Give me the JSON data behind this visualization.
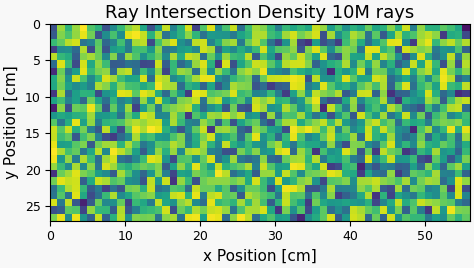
{
  "title": "Ray Intersection Density 10M rays",
  "xlabel": "x Position [cm]",
  "ylabel": "y Position [cm]",
  "xlim": [
    0,
    56
  ],
  "ylim": [
    0,
    27
  ],
  "x_ticks": [
    0,
    10,
    20,
    30,
    40,
    50
  ],
  "y_ticks": [
    0,
    5,
    10,
    15,
    20,
    25
  ],
  "colormap": "viridis",
  "grid_cols": 56,
  "grid_rows": 27,
  "seed": 7,
  "sigma": 0.4,
  "vmin": 0.0,
  "vmax": 1.0,
  "title_fontsize": 13,
  "label_fontsize": 11,
  "tick_fontsize": 9,
  "bg_color": "#f0f0f0"
}
